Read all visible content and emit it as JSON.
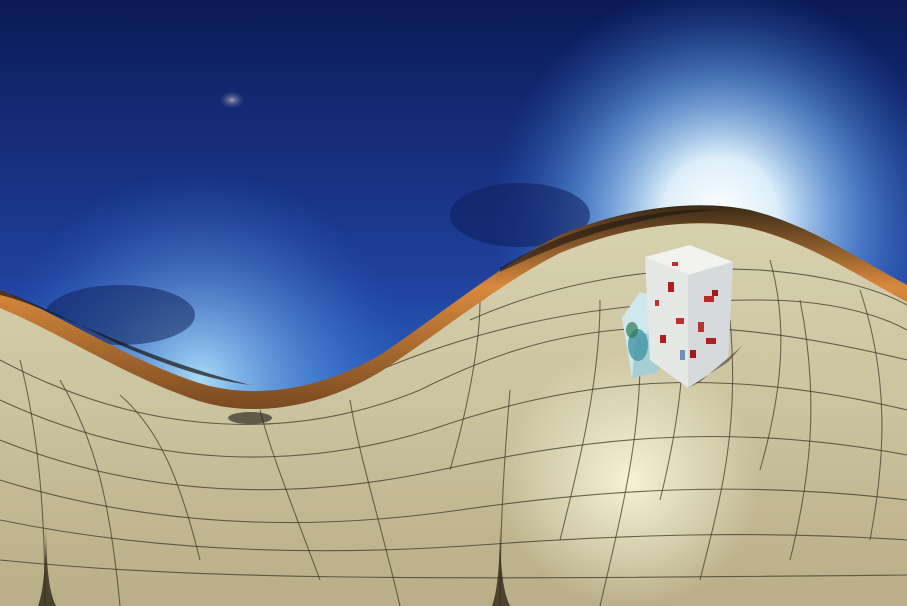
{
  "scene": {
    "type": "equirectangular-panorama",
    "sky_colors": {
      "zenith": "#0b1a55",
      "mid": "#1f3f9a",
      "horizon_glow": "#c8ecff"
    },
    "ground_colors": {
      "floor": "#cfc7a4",
      "floor_shadow": "#a89f7c",
      "grid_line": "#3f3826",
      "horizon_band": "#c97a32"
    },
    "objects": [
      "sun",
      "moon",
      "tall-box",
      "small-box"
    ]
  }
}
